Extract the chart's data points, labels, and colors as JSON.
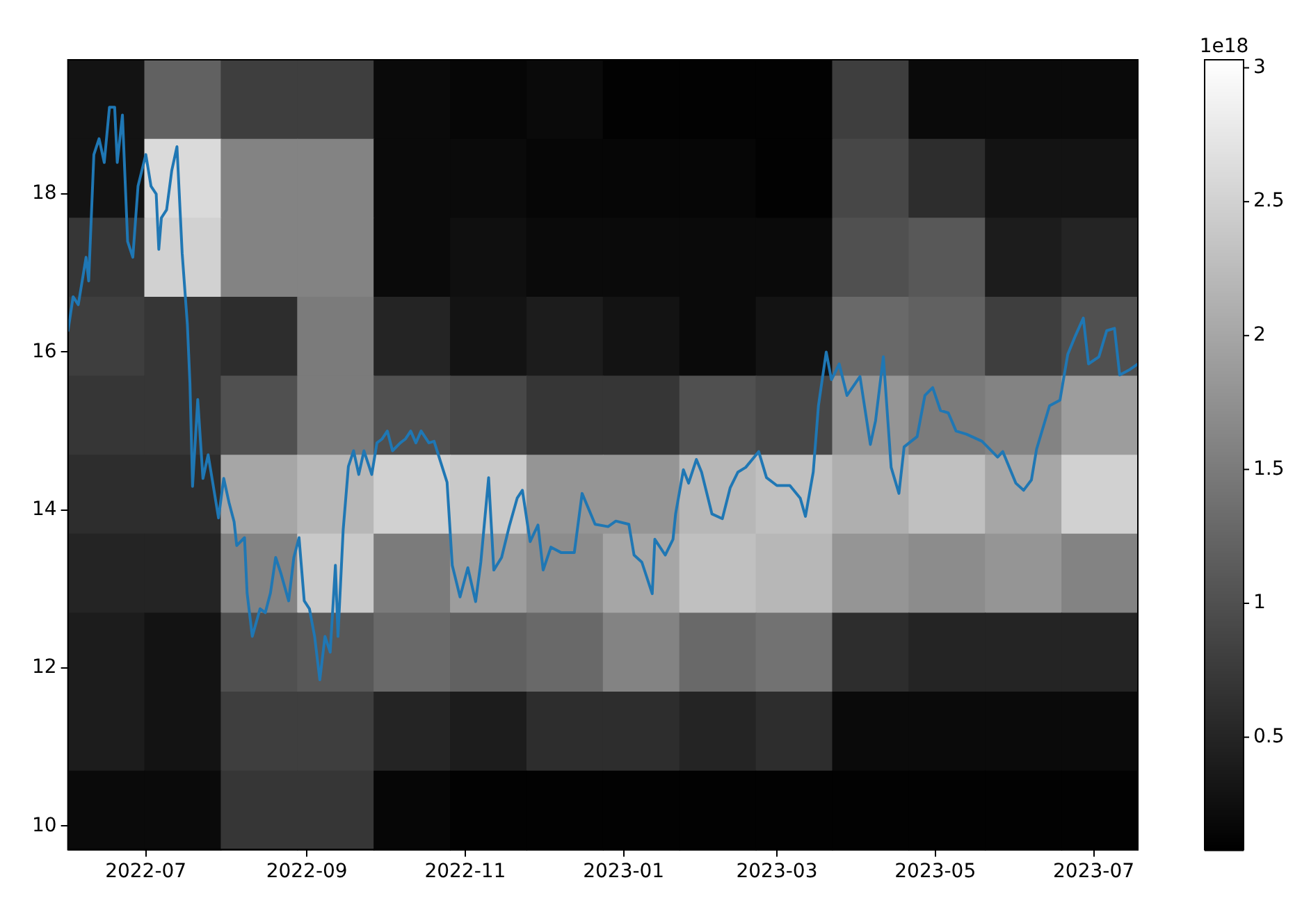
{
  "chart_data": [
    {
      "type": "heatmap",
      "tick_labels": false,
      "categories": [
        null,
        null,
        null,
        null,
        null,
        null,
        null,
        null,
        null,
        null,
        null,
        null,
        null,
        null
      ],
      "y_categories": [
        null,
        null,
        null,
        null,
        null,
        null,
        null,
        null,
        null,
        null
      ],
      "cells": [
        [
          0.3,
          1.2,
          0.8,
          0.8,
          0.2,
          0.15,
          0.2,
          0.1,
          0.1,
          0.1,
          0.8,
          0.2,
          0.2,
          0.2
        ],
        [
          0.3,
          2.6,
          1.6,
          1.6,
          0.2,
          0.2,
          0.15,
          0.15,
          0.15,
          0.1,
          0.9,
          0.6,
          0.3,
          0.3
        ],
        [
          0.7,
          2.5,
          1.6,
          1.6,
          0.2,
          0.25,
          0.2,
          0.2,
          0.2,
          0.2,
          1.0,
          1.1,
          0.4,
          0.5
        ],
        [
          0.8,
          0.7,
          0.6,
          1.5,
          0.5,
          0.3,
          0.4,
          0.3,
          0.2,
          0.3,
          1.3,
          1.2,
          0.8,
          1.0
        ],
        [
          0.7,
          0.7,
          1.0,
          1.5,
          1.0,
          0.9,
          0.7,
          0.7,
          1.0,
          0.9,
          1.8,
          1.5,
          1.6,
          1.9
        ],
        [
          0.6,
          0.6,
          2.0,
          2.2,
          2.5,
          2.4,
          1.8,
          1.8,
          2.2,
          2.3,
          2.1,
          2.3,
          2.0,
          2.5
        ],
        [
          0.5,
          0.5,
          1.6,
          2.4,
          1.5,
          1.9,
          1.7,
          2.0,
          2.3,
          2.2,
          1.8,
          1.7,
          1.8,
          1.6
        ],
        [
          0.4,
          0.3,
          1.0,
          1.1,
          1.3,
          1.2,
          1.3,
          1.6,
          1.3,
          1.4,
          0.6,
          0.5,
          0.5,
          0.5
        ],
        [
          0.4,
          0.3,
          0.8,
          0.8,
          0.5,
          0.4,
          0.6,
          0.6,
          0.5,
          0.6,
          0.2,
          0.2,
          0.2,
          0.2
        ],
        [
          0.2,
          0.2,
          0.7,
          0.7,
          0.15,
          0.1,
          0.1,
          0.1,
          0.1,
          0.1,
          0.1,
          0.1,
          0.1,
          0.1
        ]
      ],
      "clim": [
        0.08,
        3.03
      ],
      "cticks": [
        0.5,
        1.0,
        1.5,
        2.0,
        2.5,
        3.0
      ],
      "clabel": "1e18"
    },
    {
      "type": "line",
      "xlim": [
        "2022-06-01",
        "2023-07-18"
      ],
      "ylim": [
        9.7,
        19.7
      ],
      "xticks": [
        "2022-07",
        "2022-09",
        "2022-11",
        "2023-01",
        "2023-03",
        "2023-05",
        "2023-07"
      ],
      "yticks": [
        10,
        12,
        14,
        16,
        18
      ],
      "series": [
        {
          "color": "#1f77b4",
          "x": [
            "2022-06-01",
            "2022-06-03",
            "2022-06-05",
            "2022-06-08",
            "2022-06-09",
            "2022-06-11",
            "2022-06-13",
            "2022-06-15",
            "2022-06-17",
            "2022-06-19",
            "2022-06-20",
            "2022-06-22",
            "2022-06-24",
            "2022-06-26",
            "2022-06-28",
            "2022-07-01",
            "2022-07-03",
            "2022-07-05",
            "2022-07-06",
            "2022-07-07",
            "2022-07-09",
            "2022-07-11",
            "2022-07-13",
            "2022-07-15",
            "2022-07-17",
            "2022-07-18",
            "2022-07-19",
            "2022-07-21",
            "2022-07-23",
            "2022-07-25",
            "2022-07-27",
            "2022-07-29",
            "2022-07-31",
            "2022-08-02",
            "2022-08-04",
            "2022-08-05",
            "2022-08-08",
            "2022-08-09",
            "2022-08-11",
            "2022-08-14",
            "2022-08-16",
            "2022-08-18",
            "2022-08-20",
            "2022-08-22",
            "2022-08-25",
            "2022-08-27",
            "2022-08-29",
            "2022-08-31",
            "2022-09-02",
            "2022-09-04",
            "2022-09-06",
            "2022-09-08",
            "2022-09-10",
            "2022-09-12",
            "2022-09-13",
            "2022-09-15",
            "2022-09-17",
            "2022-09-19",
            "2022-09-21",
            "2022-09-23",
            "2022-09-26",
            "2022-09-28",
            "2022-09-30",
            "2022-10-02",
            "2022-10-04",
            "2022-10-07",
            "2022-10-09",
            "2022-10-11",
            "2022-10-13",
            "2022-10-15",
            "2022-10-18",
            "2022-10-20",
            "2022-10-25",
            "2022-10-27",
            "2022-10-30",
            "2022-11-02",
            "2022-11-05",
            "2022-11-07",
            "2022-11-10",
            "2022-11-12",
            "2022-11-15",
            "2022-11-18",
            "2022-11-21",
            "2022-11-23",
            "2022-11-26",
            "2022-11-29",
            "2022-12-01",
            "2022-12-04",
            "2022-12-08",
            "2022-12-13",
            "2022-12-16",
            "2022-12-21",
            "2022-12-26",
            "2022-12-29",
            "2023-01-03",
            "2023-01-05",
            "2023-01-08",
            "2023-01-12",
            "2023-01-13",
            "2023-01-17",
            "2023-01-20",
            "2023-01-21",
            "2023-01-24",
            "2023-01-26",
            "2023-01-29",
            "2023-01-31",
            "2023-02-04",
            "2023-02-08",
            "2023-02-11",
            "2023-02-14",
            "2023-02-17",
            "2023-02-22",
            "2023-02-25",
            "2023-03-01",
            "2023-03-06",
            "2023-03-10",
            "2023-03-12",
            "2023-03-15",
            "2023-03-17",
            "2023-03-20",
            "2023-03-22",
            "2023-03-25",
            "2023-03-28",
            "2023-04-02",
            "2023-04-06",
            "2023-04-08",
            "2023-04-11",
            "2023-04-14",
            "2023-04-17",
            "2023-04-19",
            "2023-04-24",
            "2023-04-27",
            "2023-04-30",
            "2023-05-03",
            "2023-05-06",
            "2023-05-09",
            "2023-05-13",
            "2023-05-19",
            "2023-05-25",
            "2023-05-27",
            "2023-06-01",
            "2023-06-04",
            "2023-06-07",
            "2023-06-09",
            "2023-06-14",
            "2023-06-18",
            "2023-06-21",
            "2023-06-24",
            "2023-06-27",
            "2023-06-29",
            "2023-07-03",
            "2023-07-06",
            "2023-07-09",
            "2023-07-11",
            "2023-07-15",
            "2023-07-18"
          ],
          "values": [
            16.26,
            16.7,
            16.6,
            17.2,
            16.9,
            18.5,
            18.7,
            18.4,
            19.1,
            19.1,
            18.4,
            19.0,
            17.4,
            17.2,
            18.1,
            18.5,
            18.1,
            18.0,
            17.3,
            17.7,
            17.8,
            18.3,
            18.6,
            17.25,
            16.35,
            15.6,
            14.3,
            15.4,
            14.4,
            14.7,
            14.3,
            13.9,
            14.4,
            14.1,
            13.85,
            13.55,
            13.65,
            12.95,
            12.4,
            12.75,
            12.7,
            12.95,
            13.4,
            13.2,
            12.85,
            13.4,
            13.65,
            12.85,
            12.75,
            12.4,
            11.85,
            12.4,
            12.2,
            13.3,
            12.4,
            13.75,
            14.55,
            14.75,
            14.45,
            14.75,
            14.45,
            14.85,
            14.9,
            15.0,
            14.75,
            14.85,
            14.9,
            15.0,
            14.85,
            15.0,
            14.85,
            14.87,
            14.35,
            13.3,
            12.9,
            13.27,
            12.84,
            13.34,
            14.41,
            13.24,
            13.4,
            13.8,
            14.15,
            14.25,
            13.6,
            13.81,
            13.24,
            13.53,
            13.46,
            13.46,
            14.21,
            13.82,
            13.79,
            13.86,
            13.82,
            13.43,
            13.34,
            12.94,
            13.63,
            13.43,
            13.63,
            13.95,
            14.51,
            14.34,
            14.64,
            14.48,
            13.95,
            13.89,
            14.28,
            14.48,
            14.54,
            14.74,
            14.41,
            14.31,
            14.31,
            14.15,
            13.92,
            14.48,
            15.32,
            16.0,
            15.65,
            15.85,
            15.45,
            15.69,
            14.83,
            15.13,
            15.94,
            14.54,
            14.21,
            14.8,
            14.93,
            15.45,
            15.55,
            15.26,
            15.23,
            15.0,
            14.96,
            14.87,
            14.67,
            14.74,
            14.34,
            14.25,
            14.38,
            14.77,
            15.32,
            15.39,
            15.97,
            16.21,
            16.43,
            15.85,
            15.94,
            16.27,
            16.3,
            15.71,
            15.78,
            15.85
          ]
        }
      ]
    }
  ]
}
